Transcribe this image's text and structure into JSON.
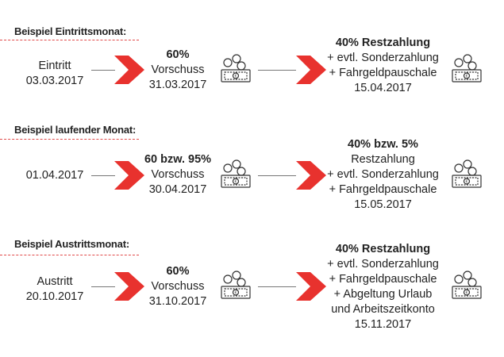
{
  "sections": [
    {
      "title": "Beispiel Eintrittsmonat:",
      "start": [
        "Eintritt",
        "03.03.2017"
      ],
      "advance": [
        "60%",
        "Vorschuss",
        "31.03.2017"
      ],
      "final": [
        "40% Restzahlung",
        "+ evtl. Sonderzahlung",
        "+ Fahrgeldpauschale",
        "15.04.2017"
      ]
    },
    {
      "title": "Beispiel laufender Monat:",
      "start": [
        "01.04.2017"
      ],
      "advance": [
        "60 bzw. 95%",
        "Vorschuss",
        "30.04.2017"
      ],
      "final": [
        "40% bzw. 5%",
        "Restzahlung",
        "+ evtl. Sonderzahlung",
        "+ Fahrgeldpauschale",
        "15.05.2017"
      ]
    },
    {
      "title": "Beispiel Austrittsmonat:",
      "start": [
        "Austritt",
        "20.10.2017"
      ],
      "advance": [
        "60%",
        "Vorschuss",
        "31.10.2017"
      ],
      "final": [
        "40% Restzahlung",
        "+ evtl. Sonderzahlung",
        "+ Fahrgeldpauschale",
        "+ Abgeltung Urlaub",
        "und Arbeitszeitkonto",
        "15.11.2017"
      ]
    }
  ],
  "colors": {
    "arrow": "#e8322e",
    "dash": "#e04a4a",
    "line": "#777777",
    "icon": "#333333"
  },
  "icons": {
    "arrow": "chevron-right-arrow-icon",
    "payment": "money-coins-icon"
  }
}
